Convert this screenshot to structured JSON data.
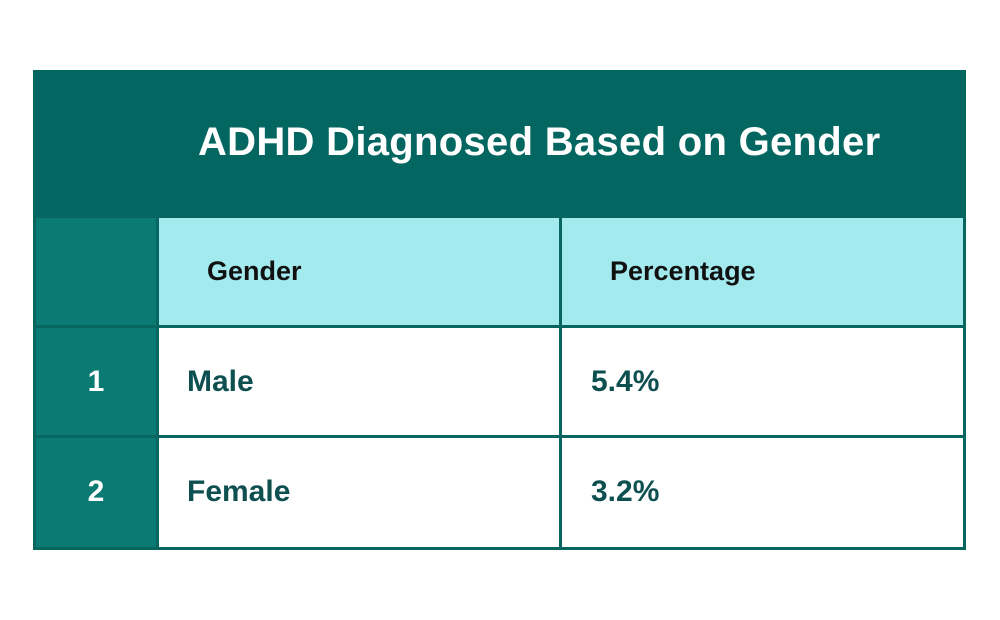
{
  "chart_data": {
    "type": "table",
    "title": "ADHD Diagnosed Based on Gender",
    "columns": [
      "Gender",
      "Percentage"
    ],
    "rows": [
      {
        "index": "1",
        "gender": "Male",
        "percentage": "5.4%"
      },
      {
        "index": "2",
        "gender": "Female",
        "percentage": "3.2%"
      }
    ]
  },
  "colors": {
    "title_bg": "#046660",
    "index_bg": "#0a7a72",
    "header_bg": "#a3eaef",
    "cell_bg": "#ffffff",
    "body_text": "#0e4f50"
  }
}
